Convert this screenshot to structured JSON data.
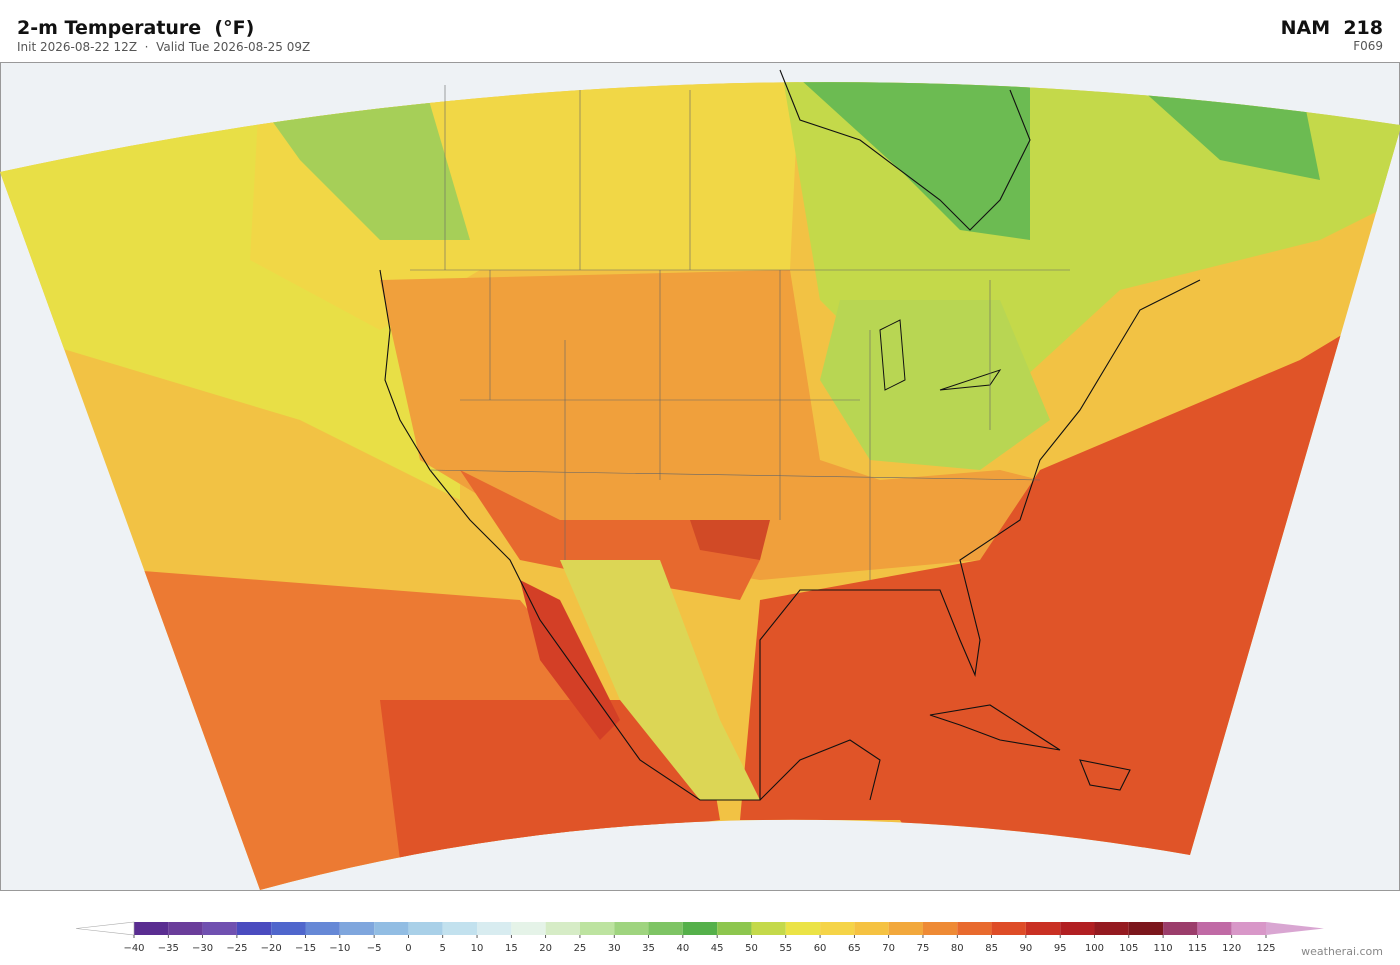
{
  "header": {
    "title": "2-m Temperature  (°F)",
    "subtitle": "Init 2026-08-22 12Z  ·  Valid Tue 2026-08-25 09Z",
    "model": "NAM  218",
    "forecast_hour": "F069"
  },
  "colorbar": {
    "lim": [
      -40,
      125
    ],
    "ticks": [
      {
        "value": -40,
        "label": "−40"
      },
      {
        "value": -35,
        "label": "−35"
      },
      {
        "value": -30,
        "label": "−30"
      },
      {
        "value": -25,
        "label": "−25"
      },
      {
        "value": -20,
        "label": "−20"
      },
      {
        "value": -15,
        "label": "−15"
      },
      {
        "value": -10,
        "label": "−10"
      },
      {
        "value": -5,
        "label": "−5"
      },
      0,
      5,
      10,
      15,
      20,
      25,
      30,
      35,
      40,
      45,
      50,
      55,
      60,
      65,
      70,
      75,
      80,
      85,
      90,
      95,
      100,
      105,
      110,
      115,
      120,
      125
    ],
    "colors": [
      "#5a2d91",
      "#6a3d9a",
      "#7050b0",
      "#4a4bbf",
      "#4f66cc",
      "#6688d6",
      "#7fa6dd",
      "#92bde3",
      "#a9d0e8",
      "#c2e1ee",
      "#d8ecf0",
      "#e5f3e8",
      "#d6ecc6",
      "#bde3a0",
      "#9fd47f",
      "#7ec464",
      "#55b04a",
      "#8dc64e",
      "#c4d94a",
      "#ebe346",
      "#f5d448",
      "#f5c242",
      "#f2a83c",
      "#ee8a35",
      "#e86a2e",
      "#de4c27",
      "#c93023",
      "#b11f22",
      "#941a20",
      "#7b161c",
      "#9b3d6b",
      "#c06aa5",
      "#d897c8"
    ],
    "extend_colors": [
      "#ffffff",
      "#d9a6d2"
    ]
  },
  "footer": {
    "credit": "weatherai.com"
  }
}
